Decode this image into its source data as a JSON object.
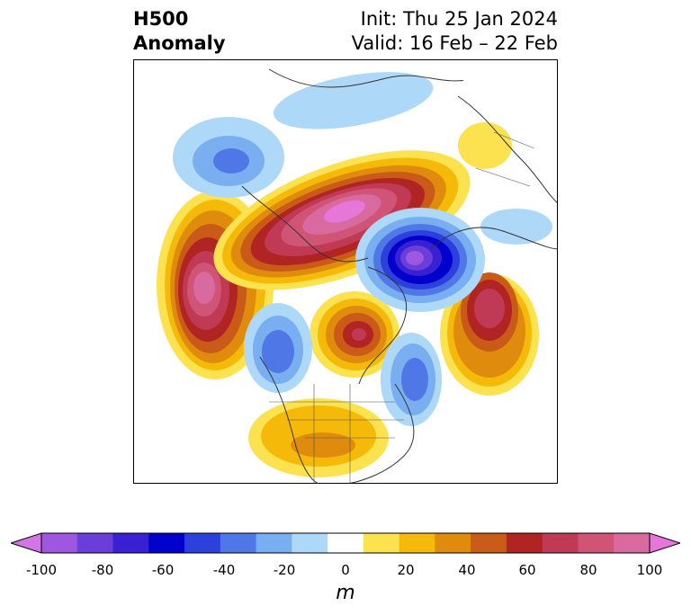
{
  "title": {
    "left_line1": "H500",
    "left_line2": "Anomaly",
    "right_line1": "Init: Thu 25 Jan 2024",
    "right_line2": "Valid: 16 Feb – 22 Feb"
  },
  "map": {
    "projection": "north-polar-stereographic",
    "variable": "500 hPa height anomaly"
  },
  "colorbar": {
    "unit": "m",
    "ticks": [
      "-100",
      "-80",
      "-60",
      "-40",
      "-20",
      "0",
      "20",
      "40",
      "60",
      "80",
      "100"
    ],
    "colors": [
      "#d574e5",
      "#9d57e0",
      "#6a3ed9",
      "#3a20d3",
      "#0000cd",
      "#2c41dc",
      "#4f78e6",
      "#79aef0",
      "#aed8f7",
      "#ffffff",
      "#fde24f",
      "#f5b90a",
      "#df8c0e",
      "#c95a17",
      "#b02424",
      "#c13a55",
      "#cf5476",
      "#d86aa0",
      "#e676d7"
    ],
    "extend": "both"
  }
}
